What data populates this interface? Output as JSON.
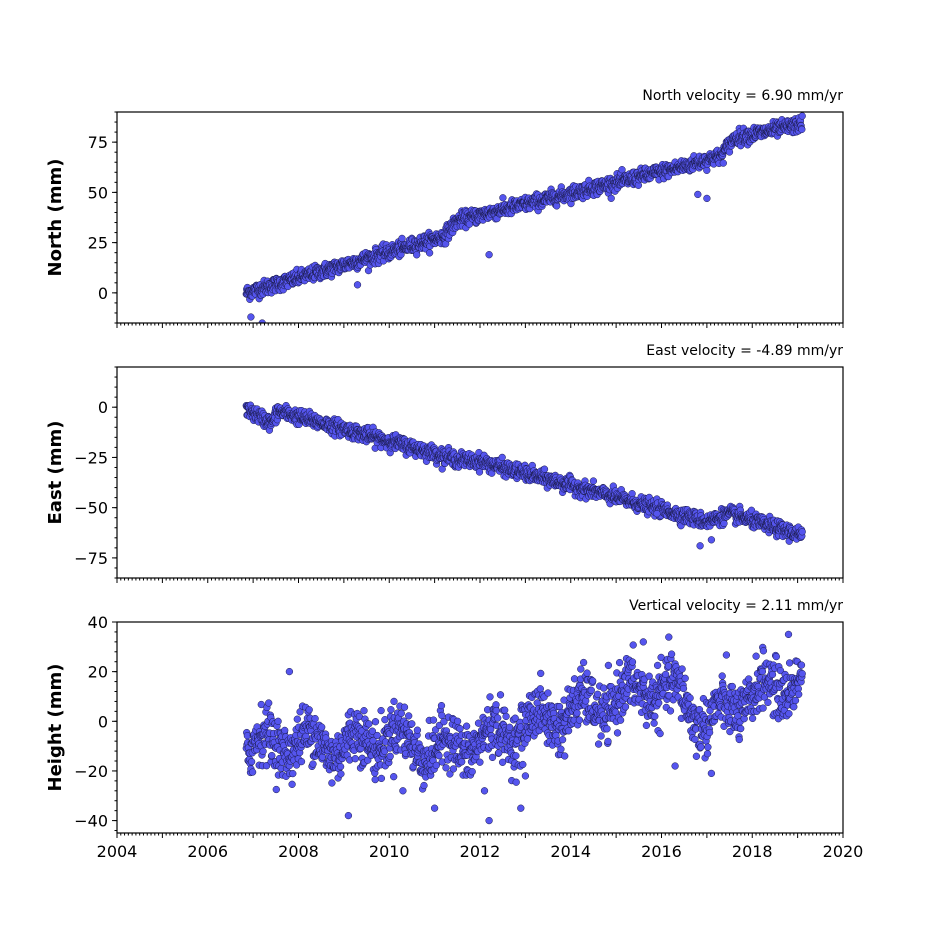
{
  "chart_data": [
    {
      "type": "scatter",
      "title": "North velocity = 6.90 mm/yr",
      "ylabel": "North (mm)",
      "ylim": [
        -15,
        90
      ],
      "yticks": [
        0,
        25,
        50,
        75
      ],
      "ytick_labels": [
        "0",
        "25",
        "50",
        "75"
      ],
      "xlim": [
        2004,
        2020
      ],
      "xticks": [],
      "xtick_labels": [],
      "grid": false,
      "series": [
        {
          "color": "#5555ee",
          "x_start": 2006.85,
          "x_end": 2019.1,
          "trend_points": [
            [
              2006.85,
              0
            ],
            [
              2011.2,
              28
            ],
            [
              2011.5,
              36
            ],
            [
              2016.5,
              63
            ],
            [
              2017.3,
              68
            ],
            [
              2017.6,
              77
            ],
            [
              2019.1,
              84
            ]
          ],
          "scatter_mm": 1.8,
          "outliers": [
            [
              2012.2,
              19
            ],
            [
              2016.8,
              49
            ],
            [
              2017.0,
              47
            ],
            [
              2006.95,
              -12
            ],
            [
              2007.2,
              -15
            ],
            [
              2009.3,
              4
            ]
          ]
        }
      ]
    },
    {
      "type": "scatter",
      "title": "East velocity = -4.89 mm/yr",
      "ylabel": "East (mm)",
      "ylim": [
        -85,
        20
      ],
      "yticks": [
        0,
        -25,
        -50,
        -75
      ],
      "ytick_labels": [
        "0",
        "−25",
        "−50",
        "−75"
      ],
      "xlim": [
        2004,
        2020
      ],
      "xticks": [],
      "xtick_labels": [],
      "grid": false,
      "series": [
        {
          "color": "#5555ee",
          "x_start": 2006.85,
          "x_end": 2019.1,
          "trend_points": [
            [
              2006.85,
              -1
            ],
            [
              2007.4,
              -8
            ],
            [
              2007.55,
              -2
            ],
            [
              2011.5,
              -26
            ],
            [
              2012.0,
              -27
            ],
            [
              2017.0,
              -57
            ],
            [
              2017.5,
              -53
            ],
            [
              2019.1,
              -64
            ]
          ],
          "scatter_mm": 1.8,
          "outliers": [
            [
              2016.85,
              -69
            ],
            [
              2017.1,
              -66
            ],
            [
              2015.9,
              -53
            ]
          ]
        }
      ]
    },
    {
      "type": "scatter",
      "title": "Vertical velocity = 2.11 mm/yr",
      "ylabel": "Height (mm)",
      "ylim": [
        -45,
        40
      ],
      "yticks": [
        40,
        20,
        0,
        -20,
        -40
      ],
      "ytick_labels": [
        "40",
        "20",
        "0",
        "−20",
        "−40"
      ],
      "xlim": [
        2004,
        2020
      ],
      "xticks": [
        2004,
        2006,
        2008,
        2010,
        2012,
        2014,
        2016,
        2018,
        2020
      ],
      "xtick_labels": [
        "2004",
        "2006",
        "2008",
        "2010",
        "2012",
        "2014",
        "2016",
        "2018",
        "2020"
      ],
      "grid": false,
      "series": [
        {
          "color": "#5555ee",
          "x_start": 2006.85,
          "x_end": 2019.1,
          "trend_points": [
            [
              2006.85,
              -10
            ],
            [
              2008.0,
              -8
            ],
            [
              2009.0,
              -10
            ],
            [
              2010.0,
              -6
            ],
            [
              2011.0,
              -12
            ],
            [
              2012.0,
              -8
            ],
            [
              2013.0,
              -2
            ],
            [
              2014.0,
              4
            ],
            [
              2015.0,
              8
            ],
            [
              2015.6,
              14
            ],
            [
              2016.5,
              10
            ],
            [
              2017.0,
              -2
            ],
            [
              2017.5,
              6
            ],
            [
              2018.0,
              10
            ],
            [
              2019.1,
              18
            ]
          ],
          "scatter_mm": 5.5,
          "outliers": [
            [
              2012.2,
              -40
            ],
            [
              2012.9,
              -35
            ],
            [
              2009.1,
              -38
            ],
            [
              2011.0,
              -35
            ],
            [
              2007.8,
              20
            ],
            [
              2015.6,
              32
            ],
            [
              2018.8,
              35
            ],
            [
              2016.3,
              -18
            ],
            [
              2017.1,
              -21
            ],
            [
              2013.0,
              -22
            ],
            [
              2012.1,
              -28
            ],
            [
              2010.3,
              -28
            ]
          ]
        }
      ]
    }
  ]
}
